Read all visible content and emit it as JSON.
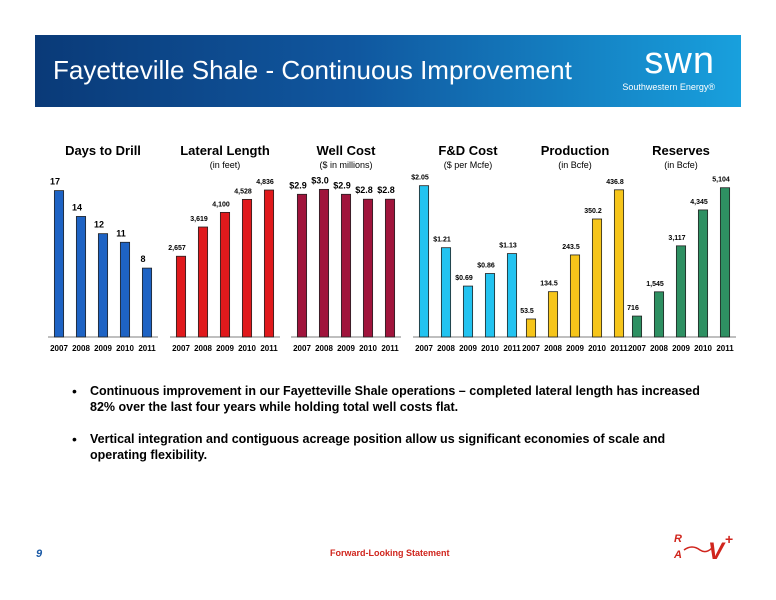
{
  "header": {
    "title": "Fayetteville Shale - Continuous Improvement",
    "logo_text": "swn",
    "logo_subtext": "Southwestern Energy®"
  },
  "colors": {
    "days_to_drill": "#1e63c4",
    "lateral_length": "#e0191c",
    "well_cost": "#a0143c",
    "fd_cost": "#23c3f0",
    "production": "#f6c51a",
    "reserves": "#2e9062"
  },
  "chart_data": [
    {
      "type": "bar",
      "title": "Days to Drill",
      "subtitle": "",
      "categories": [
        "2007",
        "2008",
        "2009",
        "2010",
        "2011"
      ],
      "values": [
        17,
        14,
        12,
        11,
        8
      ],
      "value_labels": [
        "17",
        "14",
        "12",
        "11",
        "8"
      ],
      "ylim": [
        0,
        18
      ]
    },
    {
      "type": "bar",
      "title": "Lateral Length",
      "subtitle": "(in feet)",
      "categories": [
        "2007",
        "2008",
        "2009",
        "2010",
        "2011"
      ],
      "values": [
        2657,
        3619,
        4100,
        4528,
        4836
      ],
      "value_labels": [
        "2,657",
        "3,619",
        "4,100",
        "4,528",
        "4,836"
      ],
      "ylim": [
        0,
        5100
      ]
    },
    {
      "type": "bar",
      "title": "Well Cost",
      "subtitle": "($ in millions)",
      "categories": [
        "2007",
        "2008",
        "2009",
        "2010",
        "2011"
      ],
      "values": [
        2.9,
        3.0,
        2.9,
        2.8,
        2.8
      ],
      "value_labels": [
        "$2.9",
        "$3.0",
        "$2.9",
        "$2.8",
        "$2.8"
      ],
      "ylim": [
        0,
        3.15
      ]
    },
    {
      "type": "bar",
      "title": "F&D Cost",
      "subtitle": "($ per Mcfe)",
      "categories": [
        "2007",
        "2008",
        "2009",
        "2010",
        "2011"
      ],
      "values": [
        2.05,
        1.21,
        0.69,
        0.86,
        1.13
      ],
      "value_labels": [
        "$2.05",
        "$1.21",
        "$0.69",
        "$0.86",
        "$1.13"
      ],
      "ylim": [
        0,
        2.1
      ]
    },
    {
      "type": "bar",
      "title": "Production",
      "subtitle": "(in Bcfe)",
      "categories": [
        "2007",
        "2008",
        "2009",
        "2010",
        "2011"
      ],
      "values": [
        53.5,
        134.5,
        243.5,
        350.2,
        436.8
      ],
      "value_labels": [
        "53.5",
        "134.5",
        "243.5",
        "350.2",
        "436.8"
      ],
      "ylim": [
        0,
        460
      ]
    },
    {
      "type": "bar",
      "title": "Reserves",
      "subtitle": "(in Bcfe)",
      "categories": [
        "2007",
        "2008",
        "2009",
        "2010",
        "2011"
      ],
      "values": [
        716,
        1545,
        3117,
        4345,
        5104
      ],
      "value_labels": [
        "716",
        "1,545",
        "3,117",
        "4,345",
        "5,104"
      ],
      "ylim": [
        0,
        5300
      ]
    }
  ],
  "bullets": [
    "Continuous improvement in our Fayetteville Shale operations – completed lateral length has increased 82% over the last four years while holding total well costs flat.",
    "Vertical integration and contiguous acreage position allow us significant economies of scale and operating flexibility."
  ],
  "footer": {
    "page_number": "9",
    "link_text": "Forward-Looking Statement",
    "rav_logo_text": "RAV+"
  }
}
